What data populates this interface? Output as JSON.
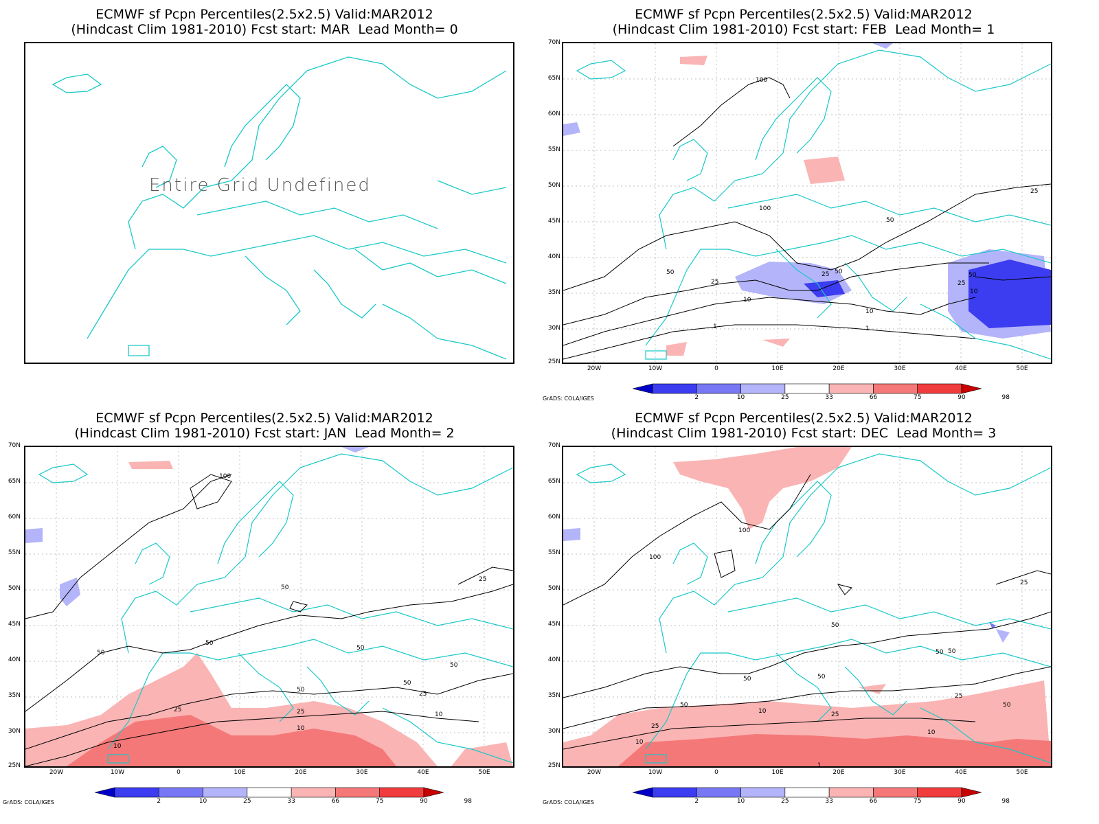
{
  "panels": [
    {
      "title_line1": "ECMWF sf Pcpn Percentiles(2.5x2.5) Valid:MAR2012",
      "title_line2": "(Hindcast Clim 1981-2010) Fcst start: MAR  Lead Month= 0",
      "message": "Entire Grid Undefined",
      "has_data": false
    },
    {
      "title_line1": "ECMWF sf Pcpn Percentiles(2.5x2.5) Valid:MAR2012",
      "title_line2": "(Hindcast Clim 1981-2010) Fcst start: FEB  Lead Month= 1",
      "has_data": true,
      "contour_labels": [
        "100",
        "100",
        "50",
        "25",
        "10",
        "1",
        "25",
        "10",
        "50",
        "25",
        "50",
        "25",
        "10",
        "10",
        "1",
        "50",
        "25"
      ]
    },
    {
      "title_line1": "ECMWF sf Pcpn Percentiles(2.5x2.5) Valid:MAR2012",
      "title_line2": "(Hindcast Clim 1981-2010) Fcst start: JAN  Lead Month= 2",
      "has_data": true,
      "contour_labels": [
        "100",
        "50",
        "50",
        "50",
        "50",
        "50",
        "25",
        "10",
        "25",
        "10",
        "10",
        "25",
        "50",
        "25",
        "10",
        "25"
      ]
    },
    {
      "title_line1": "ECMWF sf Pcpn Percentiles(2.5x2.5) Valid:MAR2012",
      "title_line2": "(Hindcast Clim 1981-2010) Fcst start: DEC  Lead Month= 3",
      "has_data": true,
      "contour_labels": [
        "100",
        "100",
        "50",
        "50",
        "50",
        "50",
        "50",
        "25",
        "10",
        "25",
        "10",
        "10",
        "1",
        "25",
        "50",
        "25",
        "50"
      ]
    }
  ],
  "axes": {
    "lat_labels": [
      "70N",
      "65N",
      "60N",
      "55N",
      "50N",
      "45N",
      "40N",
      "35N",
      "30N",
      "25N"
    ],
    "lon_labels": [
      "20W",
      "10W",
      "0",
      "10E",
      "20E",
      "30E",
      "40E",
      "50E"
    ]
  },
  "colorbar": {
    "labels": [
      "2",
      "10",
      "25",
      "33",
      "66",
      "75",
      "90",
      "98"
    ],
    "colors": [
      "#0000c8",
      "#3c3cf0",
      "#7878f5",
      "#b4b4fa",
      "#ffffff",
      "#fab4b4",
      "#f57878",
      "#f03c3c",
      "#c80000"
    ]
  },
  "credit": "GrADS: COLA/IGES",
  "map_colors": {
    "coast": "#19c8c8",
    "contour": "#000000",
    "grid": "#aaaaaa"
  }
}
